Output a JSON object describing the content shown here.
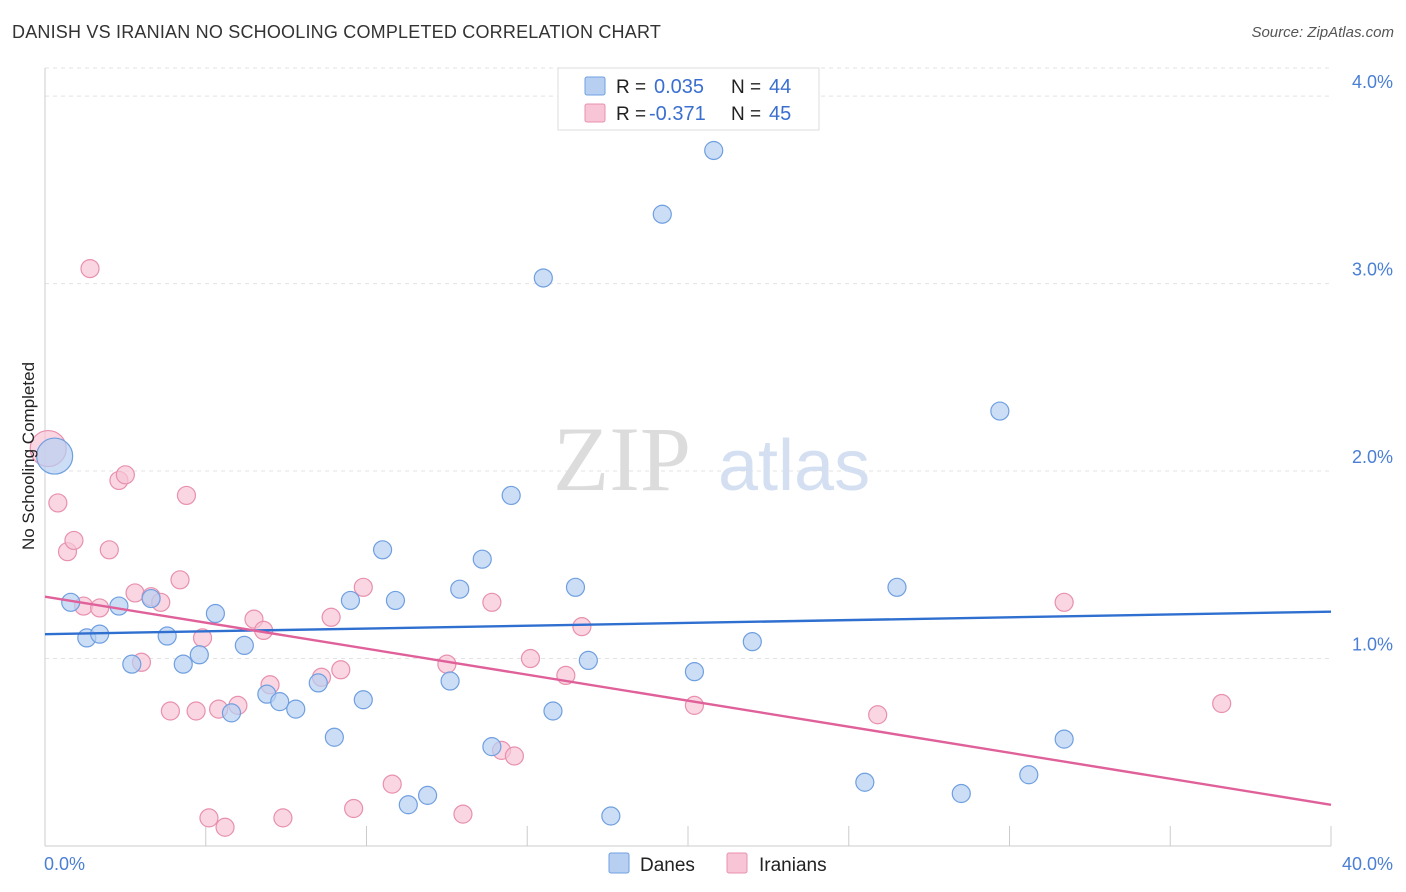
{
  "title": "DANISH VS IRANIAN NO SCHOOLING COMPLETED CORRELATION CHART",
  "source": "Source: ZipAtlas.com",
  "watermark": {
    "zip": "ZIP",
    "atlas": "atlas"
  },
  "colors": {
    "danes_fill": "#b7d0f2",
    "danes_stroke": "#6f9fe0",
    "danes_line": "#2f6fd0",
    "iranians_fill": "#f7c5d5",
    "iranians_stroke": "#e890ad",
    "iranians_line": "#e0609a",
    "tick": "#4a7fd4"
  },
  "legend": {
    "rows": [
      {
        "r_label": "R =",
        "r_value": "0.035",
        "n_label": "N =",
        "n_value": "44"
      },
      {
        "r_label": "R =",
        "r_value": "-0.371",
        "n_label": "N =",
        "n_value": "45"
      }
    ]
  },
  "chart_data": {
    "type": "scatter",
    "ylabel": "No Schooling Completed",
    "xlim": [
      0,
      40
    ],
    "ylim": [
      0,
      4.15
    ],
    "x_tick_labels": [
      "0.0%",
      "40.0%"
    ],
    "y_ticks": [
      1,
      2,
      3,
      4
    ],
    "y_tick_labels": [
      "1.0%",
      "2.0%",
      "3.0%",
      "4.0%"
    ],
    "legend_placement": "bottom-center",
    "grid": true,
    "series": [
      {
        "name": "Danes",
        "trend": {
          "x": [
            0,
            40
          ],
          "y": [
            1.13,
            1.25
          ]
        },
        "points": [
          {
            "x": 0.3,
            "y": 2.08,
            "big": true
          },
          {
            "x": 0.8,
            "y": 1.3
          },
          {
            "x": 1.3,
            "y": 1.11
          },
          {
            "x": 1.7,
            "y": 1.13
          },
          {
            "x": 2.3,
            "y": 1.28
          },
          {
            "x": 2.7,
            "y": 0.97
          },
          {
            "x": 3.3,
            "y": 1.32
          },
          {
            "x": 3.8,
            "y": 1.12
          },
          {
            "x": 4.3,
            "y": 0.97
          },
          {
            "x": 4.8,
            "y": 1.02
          },
          {
            "x": 5.3,
            "y": 1.24
          },
          {
            "x": 5.8,
            "y": 0.71
          },
          {
            "x": 6.2,
            "y": 1.07
          },
          {
            "x": 6.9,
            "y": 0.81
          },
          {
            "x": 7.3,
            "y": 0.77
          },
          {
            "x": 7.8,
            "y": 0.73
          },
          {
            "x": 8.5,
            "y": 0.87
          },
          {
            "x": 9.0,
            "y": 0.58
          },
          {
            "x": 9.5,
            "y": 1.31
          },
          {
            "x": 9.9,
            "y": 0.78
          },
          {
            "x": 10.5,
            "y": 1.58
          },
          {
            "x": 10.9,
            "y": 1.31
          },
          {
            "x": 11.3,
            "y": 0.22
          },
          {
            "x": 11.9,
            "y": 0.27
          },
          {
            "x": 12.6,
            "y": 0.88
          },
          {
            "x": 12.9,
            "y": 1.37
          },
          {
            "x": 13.6,
            "y": 1.53
          },
          {
            "x": 13.9,
            "y": 0.53
          },
          {
            "x": 14.5,
            "y": 1.87
          },
          {
            "x": 15.5,
            "y": 3.03
          },
          {
            "x": 15.8,
            "y": 0.72
          },
          {
            "x": 16.5,
            "y": 1.38
          },
          {
            "x": 16.9,
            "y": 0.99
          },
          {
            "x": 17.6,
            "y": 0.16
          },
          {
            "x": 19.2,
            "y": 3.37
          },
          {
            "x": 20.2,
            "y": 0.93
          },
          {
            "x": 20.8,
            "y": 3.71
          },
          {
            "x": 22.0,
            "y": 1.09
          },
          {
            "x": 25.5,
            "y": 0.34
          },
          {
            "x": 26.5,
            "y": 1.38
          },
          {
            "x": 28.5,
            "y": 0.28
          },
          {
            "x": 29.7,
            "y": 2.32
          },
          {
            "x": 30.6,
            "y": 0.38
          },
          {
            "x": 31.7,
            "y": 0.57
          }
        ]
      },
      {
        "name": "Iranians",
        "trend": {
          "x": [
            0,
            40
          ],
          "y": [
            1.33,
            0.22
          ]
        },
        "points": [
          {
            "x": 0.1,
            "y": 2.12,
            "big": true
          },
          {
            "x": 0.4,
            "y": 1.83
          },
          {
            "x": 0.7,
            "y": 1.57
          },
          {
            "x": 0.9,
            "y": 1.63
          },
          {
            "x": 1.2,
            "y": 1.28
          },
          {
            "x": 1.4,
            "y": 3.08
          },
          {
            "x": 1.7,
            "y": 1.27
          },
          {
            "x": 2.0,
            "y": 1.58
          },
          {
            "x": 2.3,
            "y": 1.95
          },
          {
            "x": 2.5,
            "y": 1.98
          },
          {
            "x": 2.8,
            "y": 1.35
          },
          {
            "x": 3.0,
            "y": 0.98
          },
          {
            "x": 3.3,
            "y": 1.33
          },
          {
            "x": 3.6,
            "y": 1.3
          },
          {
            "x": 3.9,
            "y": 0.72
          },
          {
            "x": 4.2,
            "y": 1.42
          },
          {
            "x": 4.4,
            "y": 1.87
          },
          {
            "x": 4.7,
            "y": 0.72
          },
          {
            "x": 4.9,
            "y": 1.11
          },
          {
            "x": 5.1,
            "y": 0.15
          },
          {
            "x": 5.4,
            "y": 0.73
          },
          {
            "x": 5.6,
            "y": 0.1
          },
          {
            "x": 6.0,
            "y": 0.75
          },
          {
            "x": 6.5,
            "y": 1.21
          },
          {
            "x": 6.8,
            "y": 1.15
          },
          {
            "x": 7.0,
            "y": 0.86
          },
          {
            "x": 7.4,
            "y": 0.15
          },
          {
            "x": 8.6,
            "y": 0.9
          },
          {
            "x": 8.9,
            "y": 1.22
          },
          {
            "x": 9.2,
            "y": 0.94
          },
          {
            "x": 9.6,
            "y": 0.2
          },
          {
            "x": 9.9,
            "y": 1.38
          },
          {
            "x": 10.8,
            "y": 0.33
          },
          {
            "x": 12.5,
            "y": 0.97
          },
          {
            "x": 13.0,
            "y": 0.17
          },
          {
            "x": 13.9,
            "y": 1.3
          },
          {
            "x": 14.2,
            "y": 0.51
          },
          {
            "x": 14.6,
            "y": 0.48
          },
          {
            "x": 15.1,
            "y": 1.0
          },
          {
            "x": 16.2,
            "y": 0.91
          },
          {
            "x": 16.7,
            "y": 1.17
          },
          {
            "x": 20.2,
            "y": 0.75
          },
          {
            "x": 25.9,
            "y": 0.7
          },
          {
            "x": 31.7,
            "y": 1.3
          },
          {
            "x": 36.6,
            "y": 0.76
          }
        ]
      }
    ]
  }
}
